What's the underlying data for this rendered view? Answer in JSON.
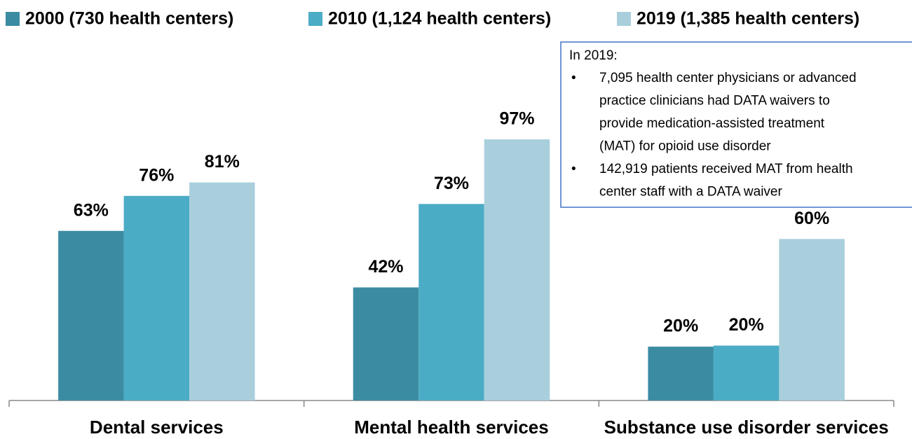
{
  "chart_data": {
    "type": "bar",
    "categories": [
      "Dental services",
      "Mental health services",
      "Substance use disorder services"
    ],
    "series": [
      {
        "name": "2000 (730 health centers)",
        "color": "#3b8ca3",
        "values": [
          63,
          42,
          20
        ],
        "value_labels": [
          "63%",
          "42%",
          "20%"
        ]
      },
      {
        "name": "2010 (1,124 health centers)",
        "color": "#4bacc6",
        "values": [
          76,
          73,
          20.4
        ],
        "value_labels": [
          "76%",
          "73%",
          "20%"
        ]
      },
      {
        "name": "2019 (1,385 health centers)",
        "color": "#a9cfdd",
        "values": [
          81,
          97,
          60
        ],
        "value_labels": [
          "81%",
          "97%",
          "60%"
        ]
      }
    ],
    "ylim": [
      0,
      100
    ],
    "annotation": {
      "heading": "In 2019:",
      "bullets": [
        [
          "7,095 health center physicians or advanced",
          "practice clinicians had DATA waivers to",
          "provide medication-assisted treatment",
          "(MAT) for opioid use disorder"
        ],
        [
          "142,919 patients received MAT from health",
          "center staff with a DATA waiver"
        ]
      ]
    }
  }
}
